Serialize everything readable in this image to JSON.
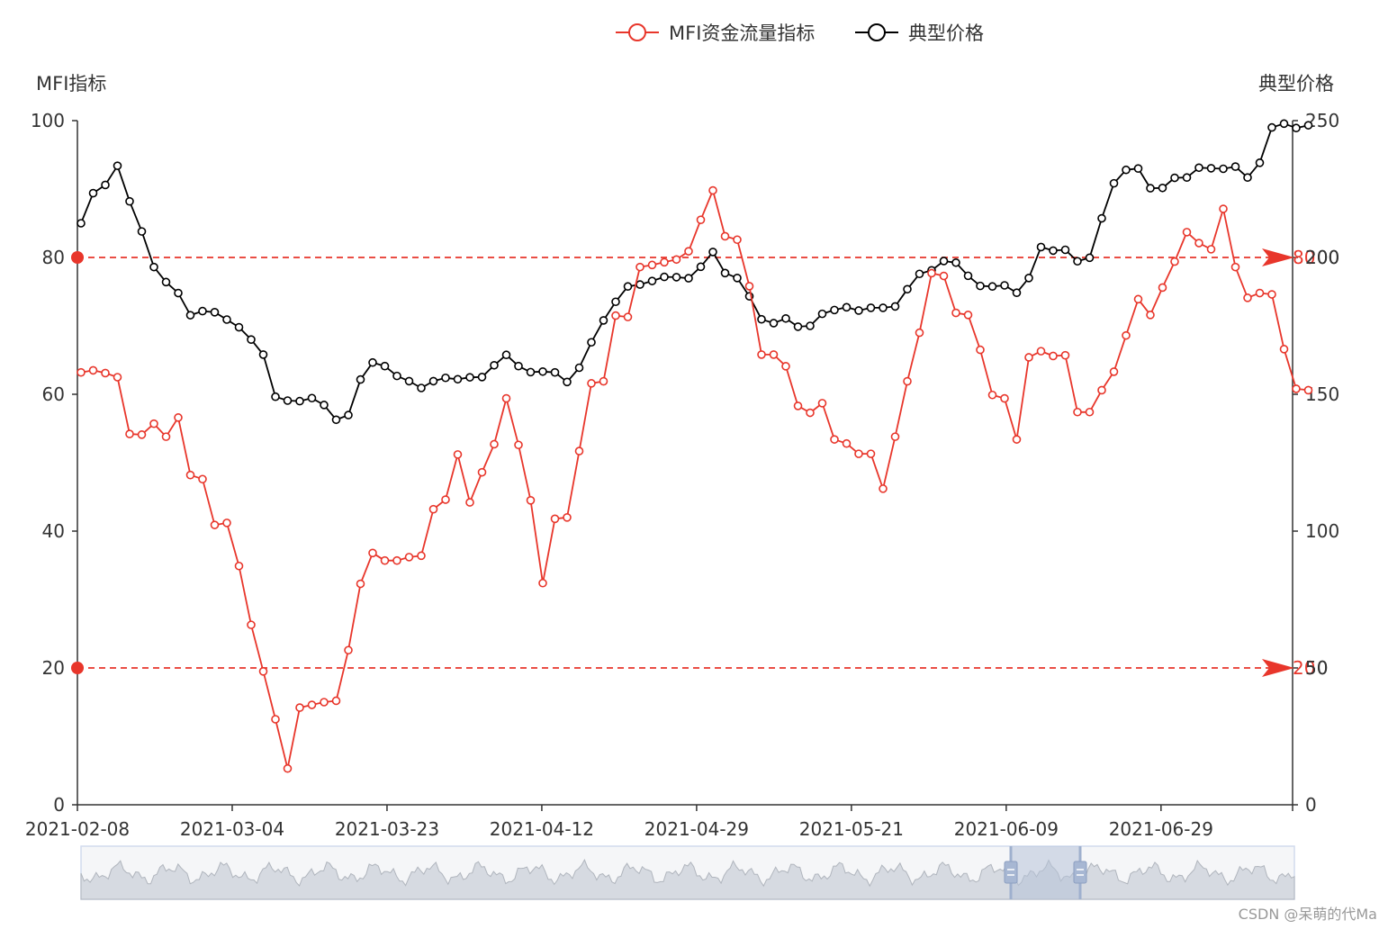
{
  "chart_data": {
    "type": "line",
    "colors": {
      "mfi": "#e8362b",
      "price": "#000000"
    },
    "legend": [
      "MFI资金流量指标",
      "典型价格"
    ],
    "left_axis": {
      "name": "MFI指标",
      "min": 0,
      "max": 100,
      "ticks": [
        "0",
        "20",
        "40",
        "60",
        "80",
        "100"
      ]
    },
    "right_axis": {
      "name": "典型价格",
      "min": 0,
      "max": 250,
      "ticks": [
        "0",
        "50",
        "100",
        "150",
        "200",
        "250"
      ]
    },
    "x_ticks": [
      "2021-02-08",
      "2021-03-04",
      "2021-03-23",
      "2021-04-12",
      "2021-04-29",
      "2021-05-21",
      "2021-06-09",
      "2021-06-29"
    ],
    "x_tick_index": [
      0,
      13,
      26,
      39,
      52,
      65,
      78,
      91
    ],
    "thresholds": [
      {
        "value": 80,
        "label": "80"
      },
      {
        "value": 20,
        "label": "20"
      }
    ],
    "right_mark_labels": [
      "200",
      "50"
    ],
    "series": [
      {
        "name": "MFI资金流量指标",
        "axis": "left",
        "values": [
          63.2,
          63.5,
          63.1,
          62.5,
          54.2,
          54.1,
          55.7,
          53.8,
          56.6,
          48.2,
          47.6,
          40.9,
          41.2,
          34.9,
          26.3,
          19.5,
          12.5,
          5.3,
          14.2,
          14.6,
          15,
          15.2,
          22.6,
          32.3,
          36.8,
          35.7,
          35.7,
          36.2,
          36.4,
          43.2,
          44.6,
          51.2,
          44.2,
          48.6,
          52.7,
          59.4,
          52.6,
          44.5,
          32.4,
          41.8,
          42,
          51.7,
          61.6,
          61.9,
          71.5,
          71.3,
          78.6,
          78.9,
          79.3,
          79.7,
          80.9,
          85.5,
          89.8,
          83.1,
          82.6,
          75.8,
          65.8,
          65.8,
          64.1,
          58.3,
          57.3,
          58.7,
          53.4,
          52.8,
          51.3,
          51.3,
          46.2,
          53.8,
          61.9,
          69,
          77.7,
          77.3,
          71.9,
          71.6,
          66.5,
          59.9,
          59.4,
          53.4,
          65.4,
          66.3,
          65.6,
          65.7,
          57.4,
          57.4,
          60.6,
          63.3,
          68.6,
          73.9,
          71.6,
          75.6,
          79.4,
          83.7,
          82.1,
          81.2,
          87.1,
          78.6,
          74.1,
          74.8,
          74.6,
          66.6,
          60.8,
          60.6
        ]
      },
      {
        "name": "典型价格",
        "axis": "right",
        "values": [
          212.5,
          223.5,
          226.5,
          233.5,
          220.5,
          209.5,
          196.5,
          191,
          187,
          178.9,
          180.4,
          180,
          177.3,
          174.5,
          170,
          164.5,
          149.1,
          147.7,
          147.5,
          148.6,
          146.1,
          140.7,
          142.4,
          155.4,
          161.6,
          160.3,
          156.7,
          154.8,
          152.3,
          154.8,
          156,
          155.5,
          156.2,
          156.3,
          160.6,
          164.4,
          160.3,
          158.1,
          158.3,
          158,
          154.5,
          159.7,
          169,
          177,
          183.8,
          189.4,
          190.1,
          191.4,
          192.9,
          192.8,
          192.4,
          196.6,
          202,
          194.3,
          192.5,
          185.8,
          177.4,
          176,
          177.7,
          174.7,
          175,
          179.4,
          180.8,
          181.8,
          180.6,
          181.6,
          181.6,
          182.1,
          188.4,
          194,
          195.3,
          198.7,
          198.1,
          193.3,
          189.6,
          189.4,
          189.8,
          187.1,
          192.5,
          203.8,
          202.5,
          202.8,
          198.6,
          199.9,
          214.3,
          227.1,
          232,
          232.5,
          225.3,
          225.4,
          229.1,
          229.2,
          232.8,
          232.6,
          232.4,
          233.2,
          229.2,
          234.6,
          247.5,
          248.9,
          247.3,
          248.3
        ]
      }
    ]
  },
  "watermark": "CSDN @呆萌的代Ma"
}
